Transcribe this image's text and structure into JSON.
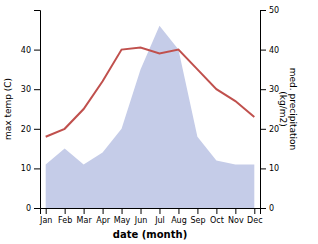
{
  "chart_data": {
    "type": "line",
    "categories": [
      "Jan",
      "Feb",
      "Mar",
      "Apr",
      "May",
      "Jun",
      "Jul",
      "Aug",
      "Sep",
      "Oct",
      "Nov",
      "Dec"
    ],
    "series": [
      {
        "type": "area",
        "axis": "y2",
        "color": "#c5cce8",
        "values": [
          11,
          15,
          11,
          14,
          20,
          35,
          46,
          40,
          18,
          12,
          11,
          11
        ]
      },
      {
        "type": "line",
        "color": "#c0504d",
        "values": [
          18,
          20,
          25,
          32,
          40,
          40.5,
          39,
          40,
          35,
          30,
          27,
          23
        ]
      }
    ],
    "x_label": "date (month)",
    "y_label": "max temp (C)",
    "y2_label": "med. precipitation\n(kg/m2)",
    "ylim": [
      0,
      50
    ],
    "yticks": [
      0,
      10,
      20,
      30,
      40
    ],
    "y2lim": [
      0,
      50
    ],
    "y2ticks": [
      0,
      10,
      20,
      30,
      40,
      50
    ],
    "grid": false
  }
}
